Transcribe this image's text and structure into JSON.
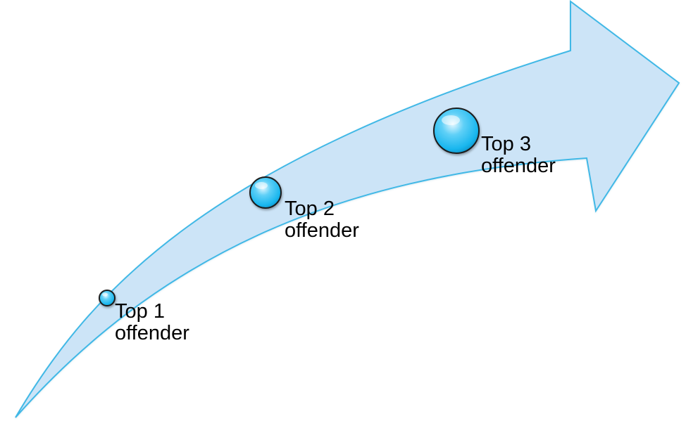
{
  "colors": {
    "arrow_fill": "#cce4f7",
    "arrow_stroke": "#3fb8e6",
    "bead_fill": "#19b6ee",
    "bead_highlight": "#e6f8ff",
    "bead_outline": "#1a1a1a"
  },
  "markers": [
    {
      "line1": "Top 1",
      "line2": "offender"
    },
    {
      "line1": "Top 2",
      "line2": "offender"
    },
    {
      "line1": "Top 3",
      "line2": "offender"
    }
  ]
}
